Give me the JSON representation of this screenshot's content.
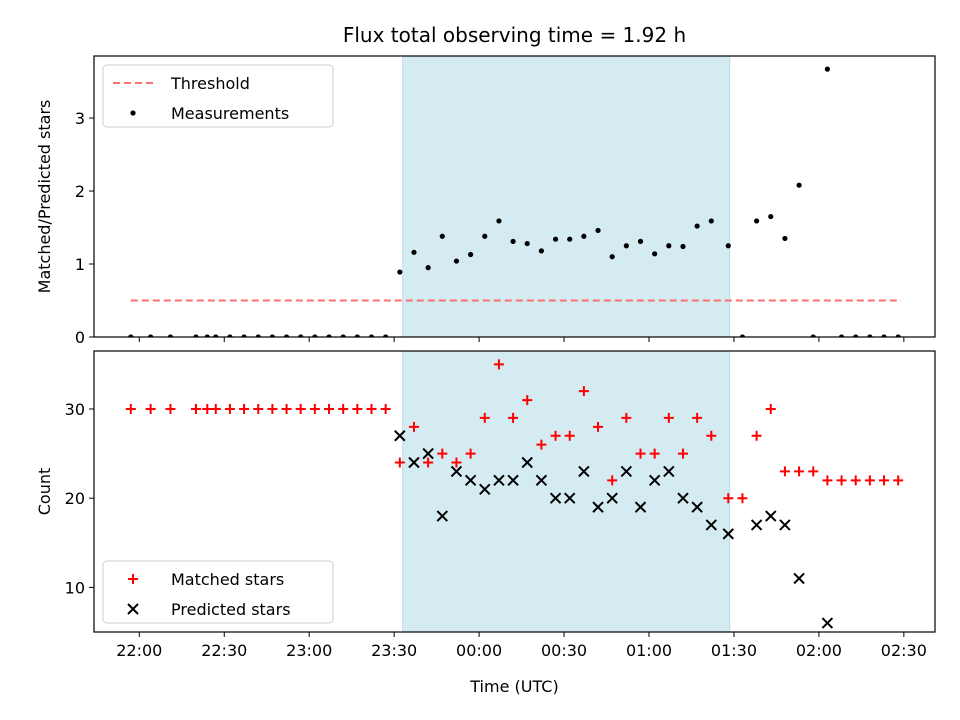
{
  "chart_data": {
    "title": "Flux total observing time = 1.92 h",
    "x_label": "Time (UTC)",
    "x_ticks": [
      "22:00",
      "22:30",
      "23:00",
      "23:30",
      "00:00",
      "00:30",
      "01:00",
      "01:30",
      "02:00",
      "02:30"
    ],
    "x_tick_minutes": [
      0,
      30,
      60,
      90,
      120,
      150,
      180,
      210,
      240,
      270
    ],
    "x_range_minutes": [
      -16,
      281
    ],
    "highlight_span_minutes": [
      93,
      208.5
    ],
    "colors": {
      "highlight": "#add8e6",
      "threshold": "#ff7070",
      "measurements": "#000000",
      "matched": "#ff0000",
      "predicted": "#000000"
    },
    "panels": [
      {
        "type": "scatter",
        "ylabel": "Matched/Predicted stars",
        "ylim": [
          0,
          3.85
        ],
        "y_ticks": [
          0,
          1,
          2,
          3
        ],
        "legend": {
          "position": "upper-left",
          "entries": [
            "Threshold",
            "Measurements"
          ]
        },
        "threshold": {
          "name": "Threshold",
          "y": 0.5,
          "x": [
            -3,
            269
          ]
        },
        "series": [
          {
            "name": "Measurements",
            "marker": "dot",
            "points": [
              [
                -3,
                0
              ],
              [
                4,
                0
              ],
              [
                11,
                0
              ],
              [
                20,
                0
              ],
              [
                24,
                0
              ],
              [
                27,
                0
              ],
              [
                32,
                0
              ],
              [
                37,
                0
              ],
              [
                42,
                0
              ],
              [
                47,
                0
              ],
              [
                52,
                0
              ],
              [
                57,
                0
              ],
              [
                62,
                0
              ],
              [
                67,
                0
              ],
              [
                72,
                0
              ],
              [
                77,
                0
              ],
              [
                82,
                0
              ],
              [
                87,
                0
              ],
              [
                92,
                0.89
              ],
              [
                97,
                1.16
              ],
              [
                102,
                0.95
              ],
              [
                107,
                1.38
              ],
              [
                112,
                1.04
              ],
              [
                117,
                1.13
              ],
              [
                122,
                1.38
              ],
              [
                127,
                1.59
              ],
              [
                132,
                1.31
              ],
              [
                137,
                1.28
              ],
              [
                142,
                1.18
              ],
              [
                147,
                1.34
              ],
              [
                152,
                1.34
              ],
              [
                157,
                1.38
              ],
              [
                162,
                1.46
              ],
              [
                167,
                1.1
              ],
              [
                172,
                1.25
              ],
              [
                177,
                1.31
              ],
              [
                182,
                1.14
              ],
              [
                187,
                1.25
              ],
              [
                192,
                1.24
              ],
              [
                197,
                1.52
              ],
              [
                202,
                1.59
              ],
              [
                208,
                1.25
              ],
              [
                213,
                0
              ],
              [
                218,
                1.59
              ],
              [
                223,
                1.65
              ],
              [
                228,
                1.35
              ],
              [
                233,
                2.08
              ],
              [
                238,
                0
              ],
              [
                243,
                3.67
              ],
              [
                248,
                0
              ],
              [
                253,
                0
              ],
              [
                258,
                0
              ],
              [
                263,
                0
              ],
              [
                268,
                0
              ]
            ]
          }
        ]
      },
      {
        "type": "scatter",
        "ylabel": "Count",
        "ylim": [
          5,
          36.5
        ],
        "y_ticks": [
          10,
          20,
          30
        ],
        "legend": {
          "position": "lower-left",
          "entries": [
            "Matched stars",
            "Predicted stars"
          ]
        },
        "series": [
          {
            "name": "Matched stars",
            "marker": "plus",
            "points": [
              [
                -3,
                30
              ],
              [
                4,
                30
              ],
              [
                11,
                30
              ],
              [
                20,
                30
              ],
              [
                24,
                30
              ],
              [
                27,
                30
              ],
              [
                32,
                30
              ],
              [
                37,
                30
              ],
              [
                42,
                30
              ],
              [
                47,
                30
              ],
              [
                52,
                30
              ],
              [
                57,
                30
              ],
              [
                62,
                30
              ],
              [
                67,
                30
              ],
              [
                72,
                30
              ],
              [
                77,
                30
              ],
              [
                82,
                30
              ],
              [
                87,
                30
              ],
              [
                92,
                24
              ],
              [
                97,
                28
              ],
              [
                102,
                24
              ],
              [
                107,
                25
              ],
              [
                112,
                24
              ],
              [
                117,
                25
              ],
              [
                122,
                29
              ],
              [
                127,
                35
              ],
              [
                132,
                29
              ],
              [
                137,
                31
              ],
              [
                142,
                26
              ],
              [
                147,
                27
              ],
              [
                152,
                27
              ],
              [
                157,
                32
              ],
              [
                162,
                28
              ],
              [
                167,
                22
              ],
              [
                172,
                29
              ],
              [
                177,
                25
              ],
              [
                182,
                25
              ],
              [
                187,
                29
              ],
              [
                192,
                25
              ],
              [
                197,
                29
              ],
              [
                202,
                27
              ],
              [
                208,
                20
              ],
              [
                213,
                20
              ],
              [
                218,
                27
              ],
              [
                223,
                30
              ],
              [
                228,
                23
              ],
              [
                233,
                23
              ],
              [
                238,
                23
              ],
              [
                243,
                22
              ],
              [
                248,
                22
              ],
              [
                253,
                22
              ],
              [
                258,
                22
              ],
              [
                263,
                22
              ],
              [
                268,
                22
              ]
            ]
          },
          {
            "name": "Predicted stars",
            "marker": "x",
            "points": [
              [
                92,
                27
              ],
              [
                97,
                24
              ],
              [
                102,
                25
              ],
              [
                107,
                18
              ],
              [
                112,
                23
              ],
              [
                117,
                22
              ],
              [
                122,
                21
              ],
              [
                127,
                22
              ],
              [
                132,
                22
              ],
              [
                137,
                24
              ],
              [
                142,
                22
              ],
              [
                147,
                20
              ],
              [
                152,
                20
              ],
              [
                157,
                23
              ],
              [
                162,
                19
              ],
              [
                167,
                20
              ],
              [
                172,
                23
              ],
              [
                177,
                19
              ],
              [
                182,
                22
              ],
              [
                187,
                23
              ],
              [
                192,
                20
              ],
              [
                197,
                19
              ],
              [
                202,
                17
              ],
              [
                208,
                16
              ],
              [
                218,
                17
              ],
              [
                223,
                18
              ],
              [
                228,
                17
              ],
              [
                233,
                11
              ],
              [
                243,
                6
              ]
            ]
          }
        ]
      }
    ]
  }
}
